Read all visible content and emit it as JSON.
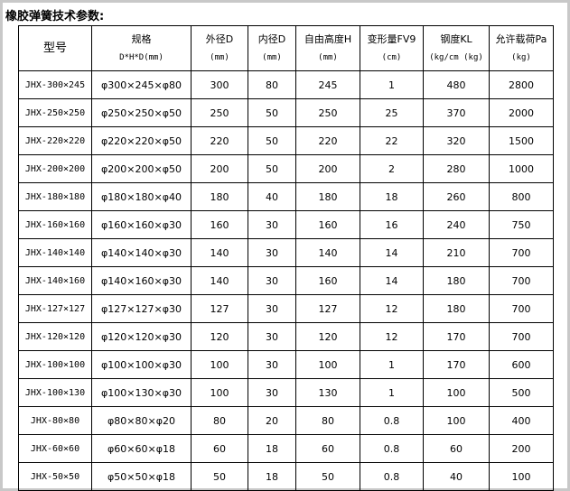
{
  "title": "橡胶弹簧技术参数:",
  "headers": [
    {
      "label": "型号",
      "unit": ""
    },
    {
      "label": "规格",
      "unit": "D*H*D(mm)"
    },
    {
      "label": "外径D",
      "unit": "(mm)"
    },
    {
      "label": "内径D",
      "unit": "(mm)"
    },
    {
      "label": "自由高度H",
      "unit": "(mm)"
    },
    {
      "label": "变形量FV9",
      "unit": "(cm)"
    },
    {
      "label": "钢度KL",
      "unit": "(kg/cm (kg)"
    },
    {
      "label": "允许载荷Pa",
      "unit": "(kg)"
    }
  ],
  "rows": [
    [
      "JHX-300×245",
      "φ300×245×φ80",
      "300",
      "80",
      "245",
      "1",
      "480",
      "2800"
    ],
    [
      "JHX-250×250",
      "φ250×250×φ50",
      "250",
      "50",
      "250",
      "25",
      "370",
      "2000"
    ],
    [
      "JHX-220×220",
      "φ220×220×φ50",
      "220",
      "50",
      "220",
      "22",
      "320",
      "1500"
    ],
    [
      "JHX-200×200",
      "φ200×200×φ50",
      "200",
      "50",
      "200",
      "2",
      "280",
      "1000"
    ],
    [
      "JHX-180×180",
      "φ180×180×φ40",
      "180",
      "40",
      "180",
      "18",
      "260",
      "800"
    ],
    [
      "JHX-160×160",
      "φ160×160×φ30",
      "160",
      "30",
      "160",
      "16",
      "240",
      "750"
    ],
    [
      "JHX-140×140",
      "φ140×140×φ30",
      "140",
      "30",
      "140",
      "14",
      "210",
      "700"
    ],
    [
      "JHX-140×160",
      "φ140×160×φ30",
      "140",
      "30",
      "160",
      "14",
      "180",
      "700"
    ],
    [
      "JHX-127×127",
      "φ127×127×φ30",
      "127",
      "30",
      "127",
      "12",
      "180",
      "700"
    ],
    [
      "JHX-120×120",
      "φ120×120×φ30",
      "120",
      "30",
      "120",
      "12",
      "170",
      "700"
    ],
    [
      "JHX-100×100",
      "φ100×100×φ30",
      "100",
      "30",
      "100",
      "1",
      "170",
      "600"
    ],
    [
      "JHX-100×130",
      "φ100×130×φ30",
      "100",
      "30",
      "130",
      "1",
      "100",
      "500"
    ],
    [
      "JHX-80×80",
      "φ80×80×φ20",
      "80",
      "20",
      "80",
      "0.8",
      "100",
      "400"
    ],
    [
      "JHX-60×60",
      "φ60×60×φ18",
      "60",
      "18",
      "60",
      "0.8",
      "60",
      "200"
    ],
    [
      "JHX-50×50",
      "φ50×50×φ18",
      "50",
      "18",
      "50",
      "0.8",
      "40",
      "100"
    ]
  ]
}
